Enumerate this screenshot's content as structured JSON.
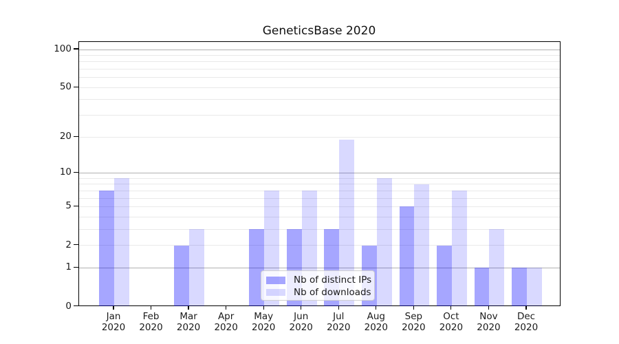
{
  "title": "GeneticsBase 2020",
  "colors": {
    "ips_bar": "rgba(0,0,255,0.35)",
    "downloads_bar": "rgba(0,0,255,0.15)",
    "grid_major": "#b0b0b0",
    "grid_minor": "#e9e9e9",
    "spine": "#000000"
  },
  "chart_data": {
    "type": "bar",
    "title": "GeneticsBase 2020",
    "year": "2020",
    "months": [
      "Jan",
      "Feb",
      "Mar",
      "Apr",
      "May",
      "Jun",
      "Jul",
      "Aug",
      "Sep",
      "Oct",
      "Nov",
      "Dec"
    ],
    "categories": [
      "Jan 2020",
      "Feb 2020",
      "Mar 2020",
      "Apr 2020",
      "May 2020",
      "Jun 2020",
      "Jul 2020",
      "Aug 2020",
      "Sep 2020",
      "Oct 2020",
      "Nov 2020",
      "Dec 2020"
    ],
    "series": [
      {
        "name": "Nb of distinct IPs",
        "color_key": "ips_bar",
        "values": [
          7,
          0,
          2,
          0,
          3,
          3,
          3,
          2,
          5,
          2,
          1,
          1
        ]
      },
      {
        "name": "Nb of downloads",
        "color_key": "downloads_bar",
        "values": [
          9,
          0,
          3,
          0,
          7,
          7,
          19,
          9,
          8,
          7,
          3,
          1
        ]
      }
    ],
    "yscale": "log1p",
    "yticks": [
      0,
      1,
      2,
      5,
      10,
      20,
      50,
      100
    ],
    "ylim": [
      0,
      115
    ],
    "xlabel": "",
    "ylabel": "",
    "grid": "horizontal",
    "legend_position": "lower center"
  }
}
